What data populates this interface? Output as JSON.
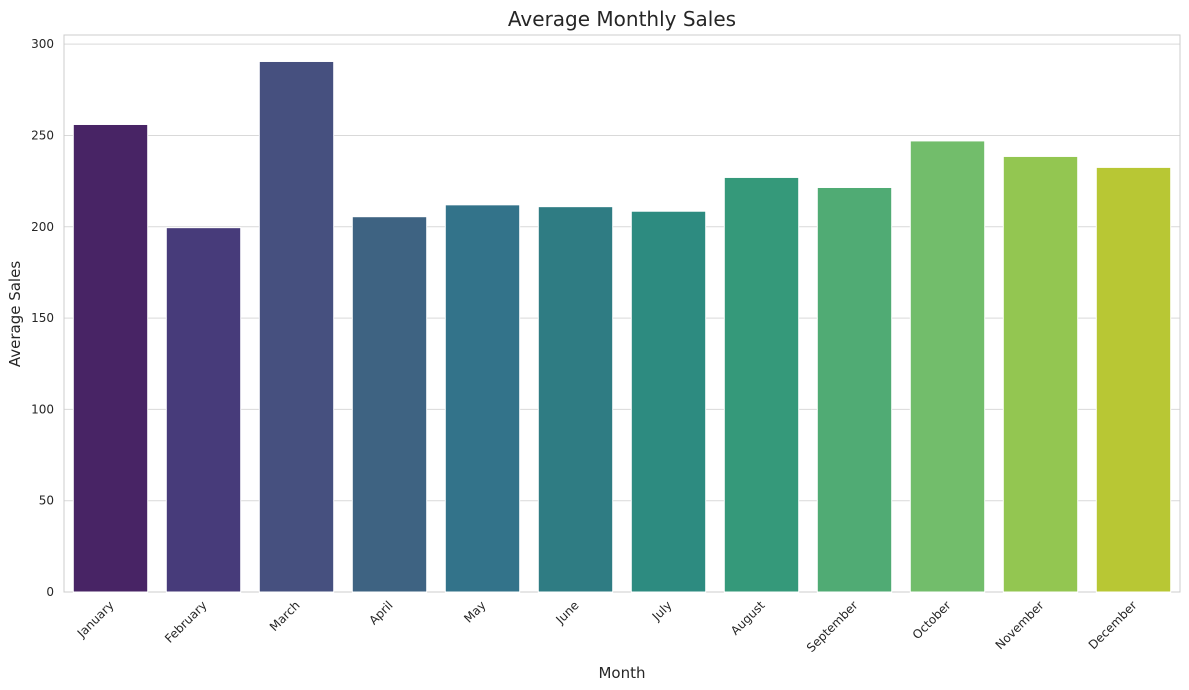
{
  "chart_data": {
    "type": "bar",
    "title": "Average Monthly Sales",
    "xlabel": "Month",
    "ylabel": "Average Sales",
    "categories": [
      "January",
      "February",
      "March",
      "April",
      "May",
      "June",
      "July",
      "August",
      "September",
      "October",
      "November",
      "December"
    ],
    "values": [
      256,
      199.5,
      290.5,
      205.5,
      212,
      211,
      208.5,
      227,
      221.5,
      247,
      238.5,
      232.5
    ],
    "ylim": [
      0,
      305
    ],
    "yticks": [
      0,
      50,
      100,
      150,
      200,
      250,
      300
    ],
    "grid": "horizontal",
    "palette": "viridis",
    "colors": [
      "#482465",
      "#473b7a",
      "#46507f",
      "#3e6382",
      "#33738a",
      "#2f7c83",
      "#2d8b80",
      "#35997a",
      "#50ab74",
      "#72bd6b",
      "#93c651",
      "#b8c734"
    ]
  }
}
